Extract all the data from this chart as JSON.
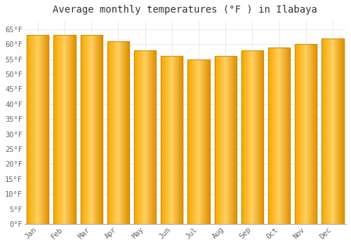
{
  "title": "Average monthly temperatures (°F ) in Ilabaya",
  "months": [
    "Jan",
    "Feb",
    "Mar",
    "Apr",
    "May",
    "Jun",
    "Jul",
    "Aug",
    "Sep",
    "Oct",
    "Nov",
    "Dec"
  ],
  "values": [
    63,
    63,
    63,
    61,
    58,
    56,
    55,
    56,
    58,
    59,
    60,
    62
  ],
  "bar_color_left": "#F5A800",
  "bar_color_center": "#FFD060",
  "bar_color_right": "#E09000",
  "bar_edge_color": "#CC8800",
  "background_color": "#FFFFFF",
  "plot_bg_color": "#FFFFFF",
  "grid_color": "#E0E0E8",
  "ylim": [
    0,
    68
  ],
  "yticks": [
    0,
    5,
    10,
    15,
    20,
    25,
    30,
    35,
    40,
    45,
    50,
    55,
    60,
    65
  ],
  "ylabel_suffix": "°F",
  "title_fontsize": 10,
  "tick_fontsize": 7.5,
  "font_family": "monospace",
  "bar_width": 0.82
}
